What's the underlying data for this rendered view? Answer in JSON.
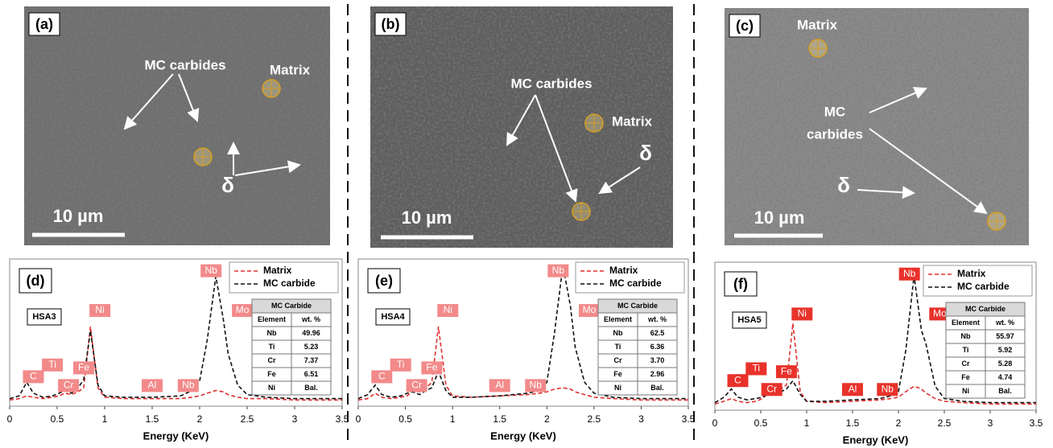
{
  "images": [
    {
      "label": "(a)",
      "texts": [
        "MC carbides",
        "Matrix",
        "δ"
      ],
      "scale_bar": "10 µm"
    },
    {
      "label": "(b)",
      "texts": [
        "MC carbides",
        "Matrix",
        "δ"
      ],
      "scale_bar": "10 µm"
    },
    {
      "label": "(c)",
      "texts": [
        "Matrix",
        "MC",
        "carbides",
        "δ"
      ],
      "scale_bar": "10 µm"
    }
  ],
  "chart_data": [
    {
      "type": "line",
      "panel": "(d)",
      "sample": "HSA3",
      "x_label": "Energy (KeV)",
      "x": [
        0,
        0.1,
        0.18,
        0.25,
        0.35,
        0.45,
        0.52,
        0.58,
        0.65,
        0.72,
        0.78,
        0.85,
        0.93,
        1.0,
        1.2,
        1.5,
        1.8,
        1.92,
        2.0,
        2.08,
        2.17,
        2.25,
        2.3,
        2.4,
        2.5,
        2.7,
        3.0,
        3.5
      ],
      "xlim": [
        0,
        3.5
      ],
      "xticks": [
        0,
        0.5,
        1,
        1.5,
        2,
        2.5,
        3,
        3.5
      ],
      "ylim": [
        0,
        100
      ],
      "legend": "upper right",
      "series": [
        {
          "name": "Matrix",
          "color": "#e03030",
          "values": [
            1,
            2,
            4,
            3,
            2,
            3,
            4,
            6,
            5,
            7,
            10,
            55,
            10,
            3,
            2,
            2,
            2,
            3,
            4,
            6,
            8,
            7,
            5,
            3,
            2,
            2,
            1,
            1
          ]
        },
        {
          "name": "MC carbide",
          "color": "#111111",
          "values": [
            2,
            4,
            14,
            6,
            3,
            4,
            6,
            8,
            6,
            10,
            16,
            52,
            12,
            4,
            3,
            3,
            4,
            8,
            15,
            45,
            92,
            60,
            35,
            12,
            5,
            3,
            2,
            2
          ]
        }
      ],
      "annotations": [
        "C",
        "Ti",
        "Cr",
        "Fe",
        "Ni",
        "Al",
        "Nb",
        "Nb",
        "Mo"
      ],
      "table": {
        "title": "MC Carbide",
        "header": [
          "Element",
          "wt. %"
        ],
        "rows": [
          [
            "Nb",
            "49.96"
          ],
          [
            "Ti",
            "5.23"
          ],
          [
            "Cr",
            "7.37"
          ],
          [
            "Fe",
            "6.51"
          ],
          [
            "Ni",
            "Bal."
          ]
        ]
      }
    },
    {
      "type": "line",
      "panel": "(e)",
      "sample": "HSA4",
      "x_label": "Energy (KeV)",
      "x": [
        0,
        0.1,
        0.18,
        0.25,
        0.35,
        0.45,
        0.52,
        0.58,
        0.65,
        0.72,
        0.78,
        0.85,
        0.93,
        1.0,
        1.2,
        1.5,
        1.8,
        1.92,
        2.0,
        2.08,
        2.17,
        2.25,
        2.3,
        2.4,
        2.5,
        2.7,
        3.0,
        3.5
      ],
      "xlim": [
        0,
        3.5
      ],
      "xticks": [
        0,
        0.5,
        1,
        1.5,
        2,
        2.5,
        3,
        3.5
      ],
      "ylim": [
        0,
        100
      ],
      "legend": "upper right",
      "series": [
        {
          "name": "Matrix",
          "color": "#e03030",
          "values": [
            1,
            2,
            6,
            3,
            2,
            3,
            4,
            8,
            7,
            10,
            14,
            55,
            12,
            4,
            3,
            4,
            5,
            6,
            7,
            9,
            10,
            9,
            7,
            5,
            3,
            2,
            1,
            1
          ]
        },
        {
          "name": "MC carbide",
          "color": "#111111",
          "values": [
            2,
            5,
            12,
            5,
            3,
            4,
            6,
            7,
            5,
            8,
            10,
            22,
            8,
            3,
            3,
            4,
            6,
            8,
            14,
            50,
            100,
            70,
            40,
            14,
            6,
            3,
            2,
            2
          ]
        }
      ],
      "annotations": [
        "C",
        "Ti",
        "Cr",
        "Fe",
        "Ni",
        "Al",
        "Nb",
        "Nb",
        "Mo"
      ],
      "table": {
        "title": "MC Carbide",
        "header": [
          "Element",
          "wt. %"
        ],
        "rows": [
          [
            "Nb",
            "62.5"
          ],
          [
            "Ti",
            "6.36"
          ],
          [
            "Cr",
            "3.70"
          ],
          [
            "Fe",
            "2.96"
          ],
          [
            "Ni",
            "Bal."
          ]
        ]
      }
    },
    {
      "type": "line",
      "panel": "(f)",
      "sample": "HSA5",
      "x_label": "Energy (KeV)",
      "x": [
        0,
        0.1,
        0.18,
        0.25,
        0.35,
        0.45,
        0.52,
        0.58,
        0.65,
        0.72,
        0.78,
        0.85,
        0.93,
        1.0,
        1.2,
        1.5,
        1.8,
        1.92,
        2.0,
        2.08,
        2.17,
        2.25,
        2.3,
        2.4,
        2.5,
        2.7,
        3.0,
        3.5
      ],
      "xlim": [
        0,
        3.5
      ],
      "xticks": [
        0,
        0.5,
        1,
        1.5,
        2,
        2.5,
        3,
        3.5
      ],
      "ylim": [
        0,
        100
      ],
      "legend": "upper right",
      "series": [
        {
          "name": "Matrix",
          "color": "#e03030",
          "values": [
            1,
            3,
            5,
            3,
            2,
            3,
            5,
            9,
            8,
            12,
            15,
            60,
            10,
            3,
            2,
            3,
            4,
            5,
            6,
            10,
            14,
            12,
            9,
            5,
            3,
            2,
            1,
            1
          ]
        },
        {
          "name": "MC carbide",
          "color": "#111111",
          "values": [
            2,
            6,
            12,
            6,
            4,
            5,
            6,
            8,
            7,
            10,
            12,
            18,
            8,
            3,
            3,
            4,
            5,
            7,
            10,
            40,
            95,
            55,
            45,
            14,
            5,
            3,
            2,
            2
          ]
        }
      ],
      "annotations": [
        "C",
        "Ti",
        "Cr",
        "Fe",
        "Ni",
        "Al",
        "Nb",
        "Nb",
        "Mo"
      ],
      "table": {
        "title": "MC Carbide",
        "header": [
          "Element",
          "wt. %"
        ],
        "rows": [
          [
            "Nb",
            "55.97"
          ],
          [
            "Ti",
            "5.92"
          ],
          [
            "Cr",
            "5.28"
          ],
          [
            "Fe",
            "4.74"
          ],
          [
            "Ni",
            "Bal."
          ]
        ]
      }
    }
  ]
}
